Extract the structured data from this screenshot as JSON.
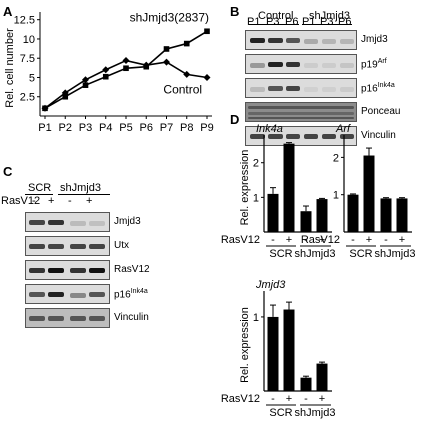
{
  "panels": {
    "a": "A",
    "b": "B",
    "c": "C",
    "d": "D"
  },
  "panel_a": {
    "chart_data": {
      "type": "line",
      "ylabel": "Rel. cell number",
      "categories": [
        "P1",
        "P2",
        "P3",
        "P4",
        "P5",
        "P6",
        "P7",
        "P8",
        "P9"
      ],
      "y_ticks": [
        "2.5",
        "5",
        "7.5",
        "10",
        "12.5"
      ],
      "ylim": [
        0,
        13.5
      ],
      "series": [
        {
          "name": "shJmjd3(2837)",
          "marker": "square",
          "values": [
            1,
            2.5,
            4,
            5.1,
            6.2,
            6.4,
            8.7,
            9.4,
            11
          ]
        },
        {
          "name": "Control",
          "marker": "diamond",
          "values": [
            1,
            3,
            4.7,
            6,
            7.2,
            6.6,
            7,
            5.4,
            5
          ]
        }
      ]
    }
  },
  "panel_b": {
    "groups": [
      "Control",
      "shJmjd3"
    ],
    "lanes": [
      "P1",
      "P3",
      "P6",
      "P1",
      "P3",
      "P6"
    ],
    "rows": [
      "Jmjd3",
      "p19",
      "p16",
      "Ponceau",
      "Vinculin"
    ],
    "row_sup": {
      "p19": "Arf",
      "p16": "Ink4a"
    }
  },
  "panel_c": {
    "groups": [
      "SCR",
      "shJmjd3"
    ],
    "treatment": "RasV12",
    "signs": [
      "-",
      "+",
      "-",
      "+"
    ],
    "rows": [
      "Jmjd3",
      "Utx",
      "RasV12",
      "p16",
      "Vinculin"
    ],
    "row_sup": {
      "p16": "Ink4a"
    }
  },
  "panel_d": {
    "chart_data": [
      {
        "type": "bar",
        "title": "Ink4a",
        "ylabel": "Rel. expression",
        "y_ticks": [
          "1",
          "2"
        ],
        "ylim": [
          0,
          2.8
        ],
        "treatment": "RasV12",
        "signs": [
          "-",
          "+",
          "-",
          "+"
        ],
        "groups": [
          "SCR",
          "shJmjd3"
        ],
        "values": [
          1.1,
          2.55,
          0.6,
          0.95
        ],
        "errors": [
          0.18,
          0.03,
          0.15,
          0.02
        ]
      },
      {
        "type": "bar",
        "title": "Arf",
        "ylabel": "",
        "y_ticks": [
          "1",
          "2"
        ],
        "ylim": [
          0,
          2.6
        ],
        "treatment": "RasV12",
        "signs": [
          "-",
          "+",
          "-",
          "+"
        ],
        "groups": [
          "SCR",
          "shJmjd3"
        ],
        "values": [
          1.0,
          2.05,
          0.9,
          0.9
        ],
        "errors": [
          0.02,
          0.2,
          0.02,
          0.02
        ]
      },
      {
        "type": "bar",
        "title": "Jmjd3",
        "ylabel": "Rel. expression",
        "y_ticks": [
          "1"
        ],
        "ylim": [
          0,
          1.35
        ],
        "treatment": "RasV12",
        "signs": [
          "-",
          "+",
          "-",
          "+"
        ],
        "groups": [
          "SCR",
          "shJmjd3"
        ],
        "values": [
          1.0,
          1.1,
          0.18,
          0.37
        ],
        "errors": [
          0.16,
          0.1,
          0.02,
          0.02
        ]
      }
    ]
  }
}
